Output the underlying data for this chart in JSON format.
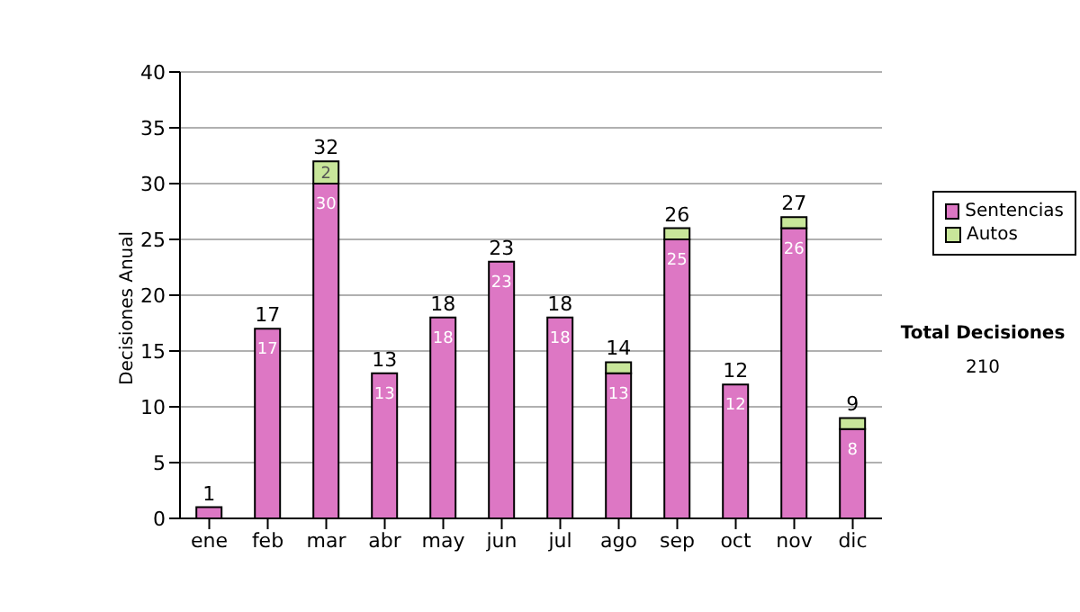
{
  "chart_data": {
    "type": "bar",
    "stacked": true,
    "ylabel": "Decisiones Anual",
    "categories": [
      "ene",
      "feb",
      "mar",
      "abr",
      "may",
      "jun",
      "jul",
      "ago",
      "sep",
      "oct",
      "nov",
      "dic"
    ],
    "series": [
      {
        "name": "Sentencias",
        "color": "#dd77c4",
        "values": [
          1,
          17,
          30,
          13,
          18,
          23,
          18,
          13,
          25,
          12,
          26,
          8
        ],
        "value_labels": [
          null,
          "17",
          "30",
          "13",
          "18",
          "23",
          "18",
          "13",
          "25",
          "12",
          "26",
          "8"
        ]
      },
      {
        "name": "Autos",
        "color": "#c8e69a",
        "values": [
          0,
          0,
          2,
          0,
          0,
          0,
          0,
          1,
          1,
          0,
          1,
          1
        ],
        "value_labels": [
          null,
          null,
          "2",
          null,
          null,
          null,
          null,
          null,
          null,
          null,
          null,
          null
        ]
      }
    ],
    "totals": [
      "1",
      "17",
      "32",
      "13",
      "18",
      "23",
      "18",
      "14",
      "26",
      "12",
      "27",
      "9"
    ],
    "ylim": [
      0,
      40
    ],
    "yticks": [
      0,
      5,
      10,
      15,
      20,
      25,
      30,
      35,
      40
    ],
    "grid": "y",
    "legend": "right",
    "annotations": [
      "Total Decisiones",
      "210"
    ]
  }
}
